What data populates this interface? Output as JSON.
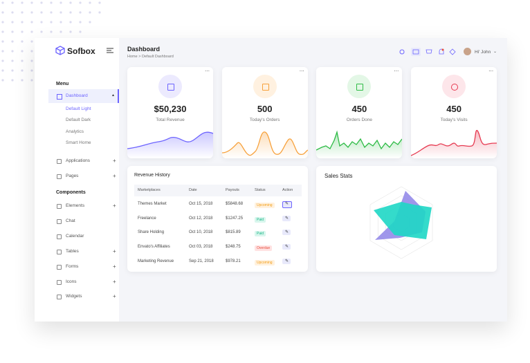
{
  "brand": "Sofbox",
  "header": {
    "title": "Dashboard",
    "breadcrumb": "Home > Default Dashboard",
    "user": "Hi' John"
  },
  "sidebar": {
    "menu_heading": "Menu",
    "dashboard": "Dashboard",
    "dashboard_items": [
      "Default Light",
      "Default Dark",
      "Analytics",
      "Smart Home"
    ],
    "menu_items": [
      "Applications",
      "Pages"
    ],
    "components_heading": "Components",
    "component_items": [
      "Elements",
      "Chat",
      "Calendar",
      "Tables",
      "Forms",
      "Icons",
      "Widgets"
    ]
  },
  "cards": [
    {
      "value": "$50,230",
      "label": "Total Revenue"
    },
    {
      "value": "500",
      "label": "Today's Orders"
    },
    {
      "value": "450",
      "label": "Orders Done"
    },
    {
      "value": "450",
      "label": "Today's Visits"
    }
  ],
  "table": {
    "title": "Revenue History",
    "columns": [
      "Marketplaces",
      "Date",
      "Payouts",
      "Status",
      "Action"
    ],
    "rows": [
      [
        "Themes Market",
        "Oct 15, 2018",
        "$5848.68",
        "Upcoming"
      ],
      [
        "Freelance",
        "Oct 12, 2018",
        "$1247.25",
        "Paid"
      ],
      [
        "Share Holding",
        "Oct 10, 2018",
        "$815.89",
        "Paid"
      ],
      [
        "Envato's Affiliates",
        "Oct 03, 2018",
        "$248.75",
        "Overdue"
      ],
      [
        "Marketing Revenue",
        "Sep 21, 2018",
        "$978.21",
        "Upcoming"
      ]
    ]
  },
  "sales": {
    "title": "Sales Stats"
  }
}
